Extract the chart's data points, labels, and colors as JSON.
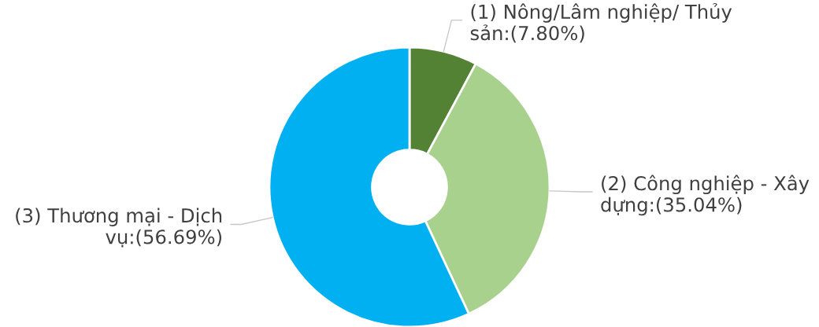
{
  "chart_data": {
    "type": "donut",
    "categories": [
      "(1) Nông/Lâm nghiệp/ Thủy sản",
      "(2) Công nghiệp - Xây dựng",
      "(3) Thương mại - Dịch vụ"
    ],
    "values": [
      7.8,
      35.04,
      56.69
    ],
    "colors": [
      "#548235",
      "#a9d18e",
      "#00b0f0"
    ],
    "value_labels": [
      ":(7.80%)",
      ":(35.04%)",
      ":(56.69%)"
    ]
  }
}
